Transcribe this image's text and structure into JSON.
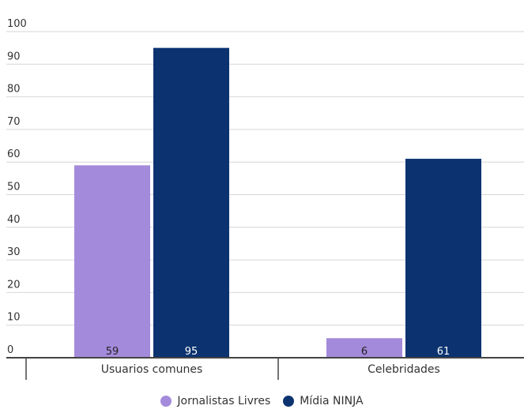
{
  "chart_data": {
    "type": "bar",
    "categories": [
      "Usuarios comunes",
      "Celebridades"
    ],
    "series": [
      {
        "name": "Jornalistas Livres",
        "values": [
          59,
          6
        ],
        "color": "#a48adb"
      },
      {
        "name": "Mídia NINJA",
        "values": [
          95,
          61
        ],
        "color": "#0c3370"
      }
    ],
    "ylim": [
      0,
      100
    ],
    "yticks": [
      0,
      10,
      20,
      30,
      40,
      50,
      60,
      70,
      80,
      90,
      100
    ],
    "data_labels": true,
    "grid": true,
    "legend_position": "bottom-center"
  }
}
